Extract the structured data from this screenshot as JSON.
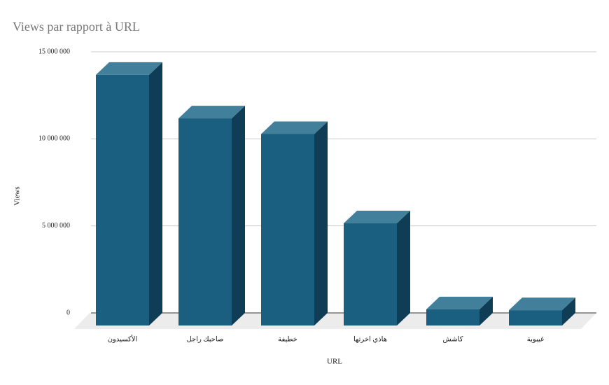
{
  "chart_data": {
    "type": "bar3d",
    "title": "Views par rapport à URL",
    "x_label": "URL",
    "y_label": "Views",
    "categories": [
      "الأكسيدون",
      "صاحبك راجل",
      "خطيفة",
      "هاذي اخرتها",
      "كاشش",
      "غيبوبة"
    ],
    "values": [
      14400000,
      11900000,
      11000000,
      5870000,
      930000,
      880000
    ],
    "color": "#1a5e80",
    "ylim": [
      0,
      15000000
    ],
    "yticks": [
      0,
      {
        "value": 5000000,
        "label": "5 000 000"
      },
      {
        "value": 10000000,
        "label": "10 000 000"
      },
      {
        "value": 15000000,
        "label": "15 000 000"
      }
    ],
    "grid": true
  }
}
